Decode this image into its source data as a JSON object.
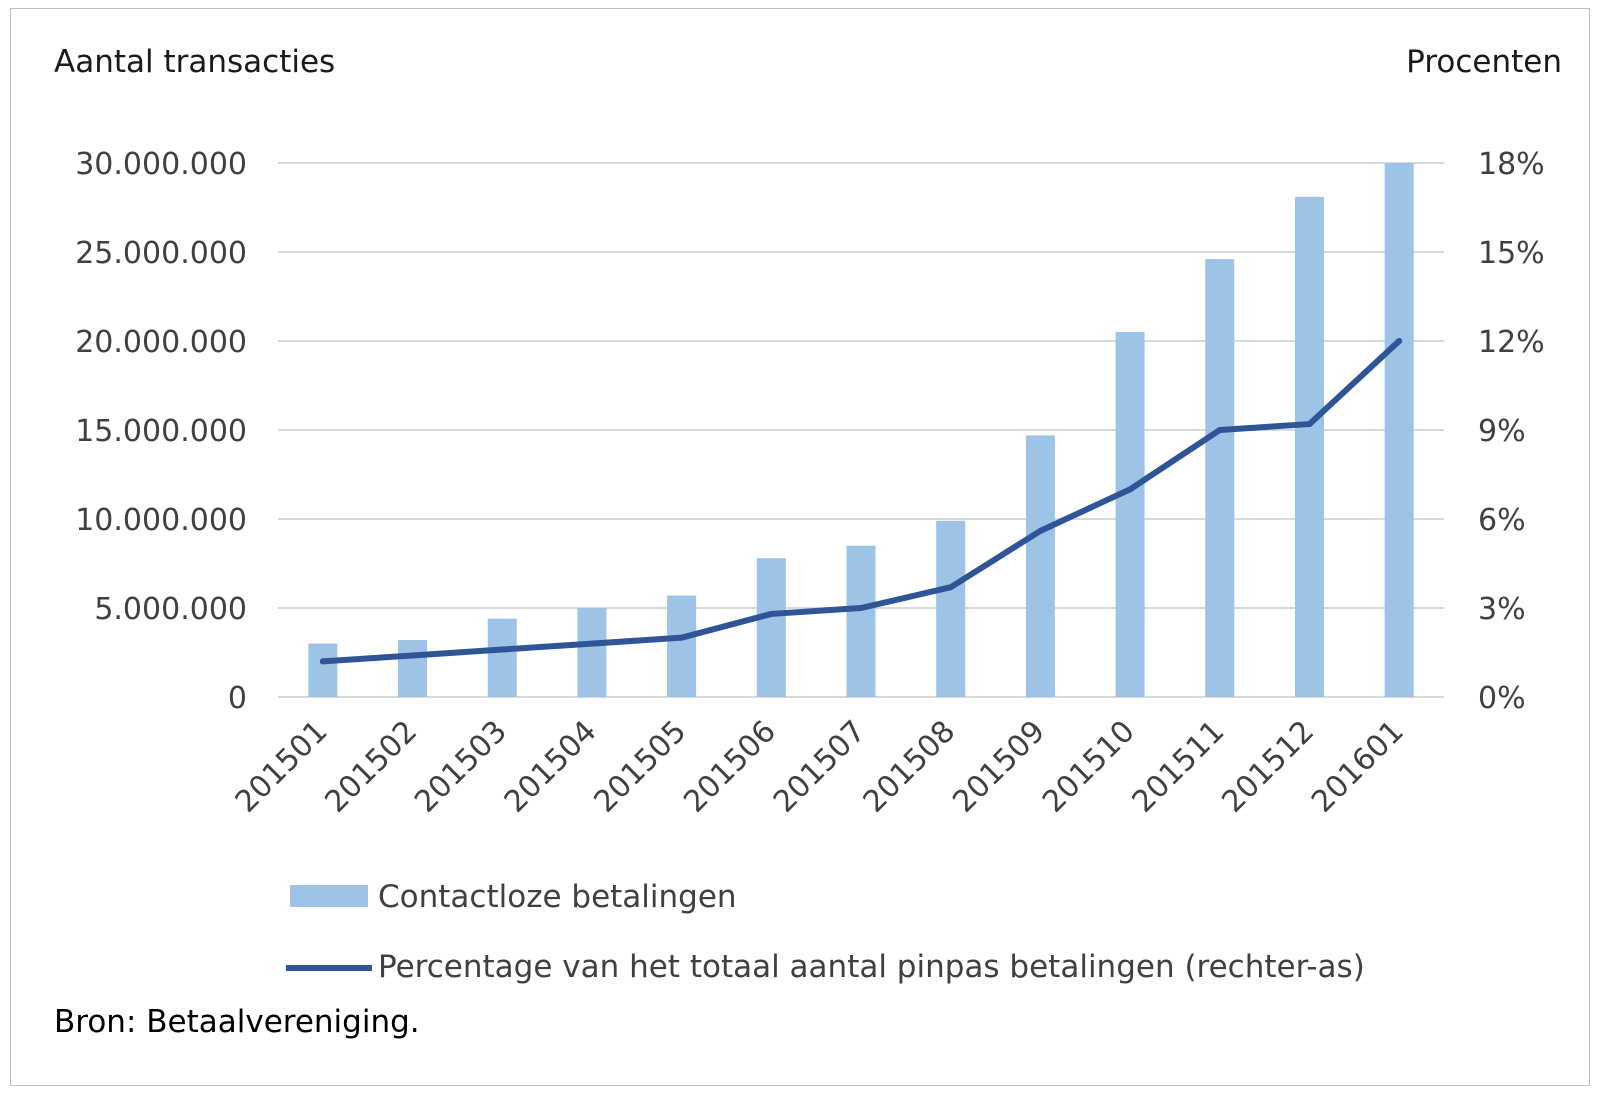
{
  "chart_data": {
    "type": "bar",
    "title": "",
    "left_axis_title": "Aantal transacties",
    "right_axis_title": "Procenten",
    "categories": [
      "201501",
      "201502",
      "201503",
      "201504",
      "201505",
      "201506",
      "201507",
      "201508",
      "201509",
      "201510",
      "201511",
      "201512",
      "201601"
    ],
    "y_left": {
      "ylim": [
        0,
        30000000
      ],
      "ticks": [
        0,
        5000000,
        10000000,
        15000000,
        20000000,
        25000000,
        30000000
      ],
      "tick_labels": [
        "0",
        "5.000.000",
        "10.000.000",
        "15.000.000",
        "20.000.000",
        "25.000.000",
        "30.000.000"
      ]
    },
    "y_right": {
      "ylim": [
        0,
        18
      ],
      "ticks": [
        0,
        3,
        6,
        9,
        12,
        15,
        18
      ],
      "tick_labels": [
        "0%",
        "3%",
        "6%",
        "9%",
        "12%",
        "15%",
        "18%"
      ]
    },
    "grid": true,
    "legend_position": "bottom",
    "series": [
      {
        "name": "Contactloze betalingen",
        "type": "bar",
        "axis": "left",
        "color": "#9dc3e6",
        "values": [
          3000000,
          3200000,
          4400000,
          5000000,
          5700000,
          7800000,
          8500000,
          9900000,
          14700000,
          20500000,
          24600000,
          28100000,
          30000000
        ]
      },
      {
        "name": "Percentage van het totaal aantal pinpas betalingen (rechter-as)",
        "type": "line",
        "axis": "right",
        "color": "#2f5597",
        "values": [
          1.2,
          1.4,
          1.6,
          1.8,
          2.0,
          2.8,
          3.0,
          3.7,
          5.6,
          7.0,
          9.0,
          9.2,
          12.0
        ]
      }
    ],
    "source": "Bron: Betaalvereniging."
  }
}
